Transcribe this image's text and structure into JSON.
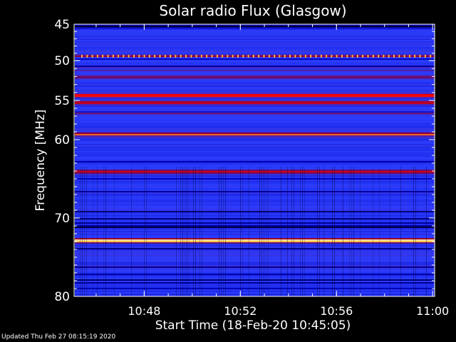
{
  "chart_data": {
    "type": "heatmap",
    "title": "Solar radio Flux (Glasgow)",
    "xlabel": "Start Time (18-Feb-20 10:45:05)",
    "ylabel": "Frequency [MHz]",
    "x_ticks": [
      "10:48",
      "10:52",
      "10:56",
      "11:00"
    ],
    "y_ticks": [
      "45",
      "50",
      "55",
      "60",
      "70",
      "80"
    ],
    "y_tick_values": [
      45,
      50,
      55,
      60,
      70,
      80
    ],
    "x_range": [
      "10:45:05",
      "11:00:05"
    ],
    "y_range_mhz": [
      45,
      80
    ],
    "colormap": [
      "#000000",
      "#0000b4",
      "#2a3cff",
      "#800040",
      "#ff0000",
      "#ffc040",
      "#ffffff"
    ],
    "bands": [
      {
        "freq_mhz": 45.2,
        "intensity": 0.05
      },
      {
        "freq_mhz": 49.4,
        "intensity": 0.55
      },
      {
        "freq_mhz": 51.0,
        "intensity": 0.5
      },
      {
        "freq_mhz": 52.0,
        "intensity": 0.48
      },
      {
        "freq_mhz": 54.3,
        "intensity": 0.72
      },
      {
        "freq_mhz": 55.2,
        "intensity": 0.62
      },
      {
        "freq_mhz": 56.5,
        "intensity": 0.45
      },
      {
        "freq_mhz": 59.3,
        "intensity": 0.76
      },
      {
        "freq_mhz": 64.0,
        "intensity": 0.6
      },
      {
        "freq_mhz": 71.0,
        "intensity": 0.12
      },
      {
        "freq_mhz": 72.8,
        "intensity": 0.98
      },
      {
        "freq_mhz": 78.5,
        "intensity": 0.3
      }
    ]
  },
  "footer": {
    "updated_text": "Updated Thu Feb 27 08:15:19 2020"
  }
}
